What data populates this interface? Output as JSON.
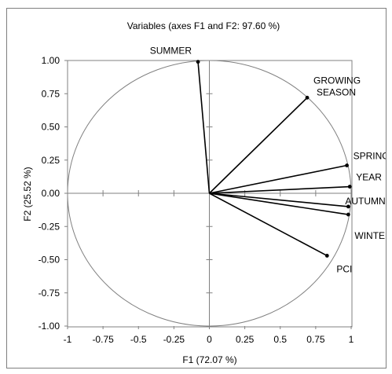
{
  "chart_data": {
    "type": "scatter",
    "subtype": "correlation-circle",
    "title": "Variables (axes F1 and F2: 97.60 %)",
    "xlabel": "F1 (72.07 %)",
    "ylabel": "F2 (25.52 %)",
    "xlim": [
      -1,
      1
    ],
    "ylim": [
      -1,
      1
    ],
    "x_ticks": [
      "-1",
      "-0.75",
      "-0.5",
      "-0.25",
      "0",
      "0.25",
      "0.5",
      "0.75",
      "1"
    ],
    "y_ticks": [
      "1.00",
      "0.75",
      "0.50",
      "0.25",
      "0.00",
      "-0.25",
      "-0.50",
      "-0.75",
      "-1.00"
    ],
    "grid": false,
    "points": [
      {
        "label": "SUMMER",
        "x": -0.08,
        "y": 0.99
      },
      {
        "label": "GROWING SEASON",
        "label_lines": [
          "GROWING",
          "SEASON"
        ],
        "x": 0.69,
        "y": 0.72
      },
      {
        "label": "SPRING",
        "x": 0.97,
        "y": 0.21
      },
      {
        "label": "YEAR",
        "x": 0.99,
        "y": 0.05
      },
      {
        "label": "AUTUMN",
        "x": 0.98,
        "y": -0.1
      },
      {
        "label": "WINTER",
        "x": 0.98,
        "y": -0.16
      },
      {
        "label": "PCI",
        "x": 0.83,
        "y": -0.47
      }
    ],
    "colors": {
      "line": "#000000",
      "circle": "#808080",
      "axis": "#808080",
      "frame": "#7f7f7f"
    }
  }
}
